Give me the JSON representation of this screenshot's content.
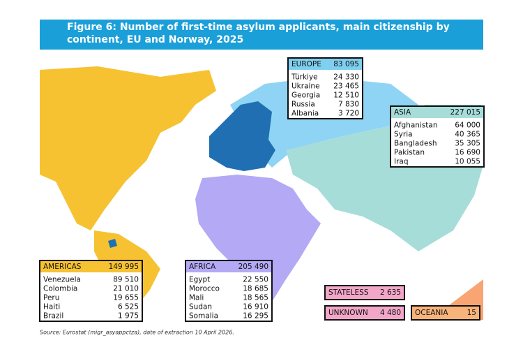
{
  "title": "Figure 6: Number of first-time asylum applicants, main citizenship by continent, EU and Norway, 2025",
  "source": "Source: Eurostat (migr_asyappctza), date of extraction 10 April 2026.",
  "regions": [
    {
      "name": "EUROPE",
      "total": "83 095",
      "rows": [
        {
          "country": "Türkiye",
          "value": "24 330"
        },
        {
          "country": "Ukraine",
          "value": "23 465"
        },
        {
          "country": "Georgia",
          "value": "12 510"
        },
        {
          "country": "Russia",
          "value": "7 830"
        },
        {
          "country": "Albania",
          "value": "3 720"
        }
      ]
    },
    {
      "name": "ASIA",
      "total": "227 015",
      "rows": [
        {
          "country": "Afghanistan",
          "value": "64 000"
        },
        {
          "country": "Syria",
          "value": "40 365"
        },
        {
          "country": "Bangladesh",
          "value": "35 305"
        },
        {
          "country": "Pakistan",
          "value": "16 690"
        },
        {
          "country": "Iraq",
          "value": "10 055"
        }
      ]
    },
    {
      "name": "AMERICAS",
      "total": "149 995",
      "rows": [
        {
          "country": "Venezuela",
          "value": "89 510"
        },
        {
          "country": "Colombia",
          "value": "21 010"
        },
        {
          "country": "Peru",
          "value": "19 655"
        },
        {
          "country": "Haiti",
          "value": "6 525"
        },
        {
          "country": "Brazil",
          "value": "1 975"
        }
      ]
    },
    {
      "name": "AFRICA",
      "total": "205 490",
      "rows": [
        {
          "country": "Egypt",
          "value": "22 550"
        },
        {
          "country": "Morocco",
          "value": "18 685"
        },
        {
          "country": "Mali",
          "value": "18 565"
        },
        {
          "country": "Sudan",
          "value": "16 910"
        },
        {
          "country": "Somalia",
          "value": "16 295"
        }
      ]
    },
    {
      "name": "STATELESS",
      "total": "2 635",
      "rows": []
    },
    {
      "name": "UNKNOWN",
      "total": "4 480",
      "rows": []
    },
    {
      "name": "OCEANIA",
      "total": "15",
      "rows": []
    }
  ]
}
